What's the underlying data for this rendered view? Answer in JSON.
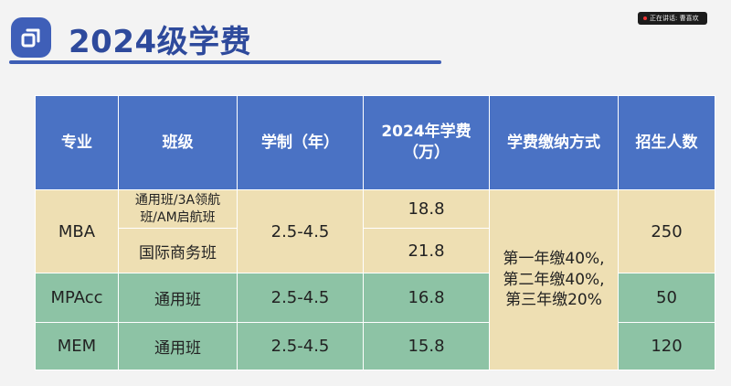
{
  "header": {
    "title": "2024级学费",
    "notice_text": "正在讲话: 曹喜欢"
  },
  "table": {
    "headers": [
      "专业",
      "班级",
      "学制（年）",
      "2024年学费\n（万）",
      "学费缴纳方式",
      "招生人数"
    ],
    "rows": {
      "mba": {
        "major": "MBA",
        "class_a": "通用班/3A领航\n班/AM启航班",
        "class_b": "国际商务班",
        "duration": "2.5-4.5",
        "fee_a": "18.8",
        "fee_b": "21.8",
        "enrollment": "250"
      },
      "mpacc": {
        "major": "MPAcc",
        "class": "通用班",
        "duration": "2.5-4.5",
        "fee": "16.8",
        "enrollment": "50"
      },
      "mem": {
        "major": "MEM",
        "class": "通用班",
        "duration": "2.5-4.5",
        "fee": "15.8",
        "enrollment": "120"
      }
    },
    "payment_method": "第一年缴40%,\n第二年缴40%,\n第三年缴20%"
  },
  "colors": {
    "header_bg": "#4a72c4",
    "tan_row": "#eedfb3",
    "green_row": "#8dc3a5",
    "title_color": "#2e4a9c"
  }
}
